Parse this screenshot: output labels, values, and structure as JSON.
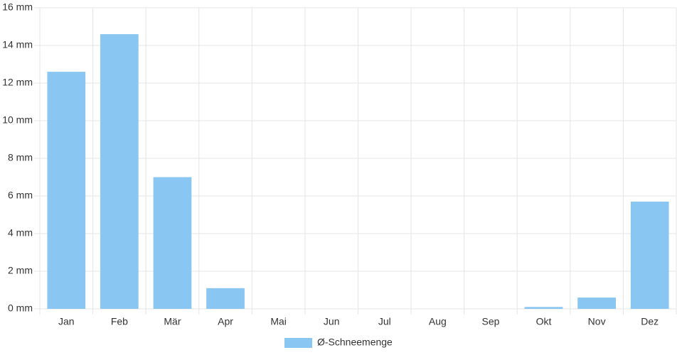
{
  "chart_data": {
    "type": "bar",
    "categories": [
      "Jan",
      "Feb",
      "Mär",
      "Apr",
      "Mai",
      "Jun",
      "Jul",
      "Aug",
      "Sep",
      "Okt",
      "Nov",
      "Dez"
    ],
    "series": [
      {
        "name": "Ø-Schneemenge",
        "color": "#89c6f2",
        "values": [
          12.6,
          14.6,
          7.0,
          1.1,
          0,
          0,
          0,
          0,
          0,
          0.1,
          0.6,
          5.7
        ]
      }
    ],
    "ylim": [
      0,
      16
    ],
    "yticks": [
      {
        "value": 0,
        "label": "0 mm"
      },
      {
        "value": 2,
        "label": "2 mm"
      },
      {
        "value": 4,
        "label": "4 mm"
      },
      {
        "value": 6,
        "label": "6 mm"
      },
      {
        "value": 8,
        "label": "8 mm"
      },
      {
        "value": 10,
        "label": "10 mm"
      },
      {
        "value": 12,
        "label": "12 mm"
      },
      {
        "value": 14,
        "label": "14 mm"
      },
      {
        "value": 16,
        "label": "16 mm"
      }
    ],
    "grid": true,
    "legend": "bottom"
  }
}
